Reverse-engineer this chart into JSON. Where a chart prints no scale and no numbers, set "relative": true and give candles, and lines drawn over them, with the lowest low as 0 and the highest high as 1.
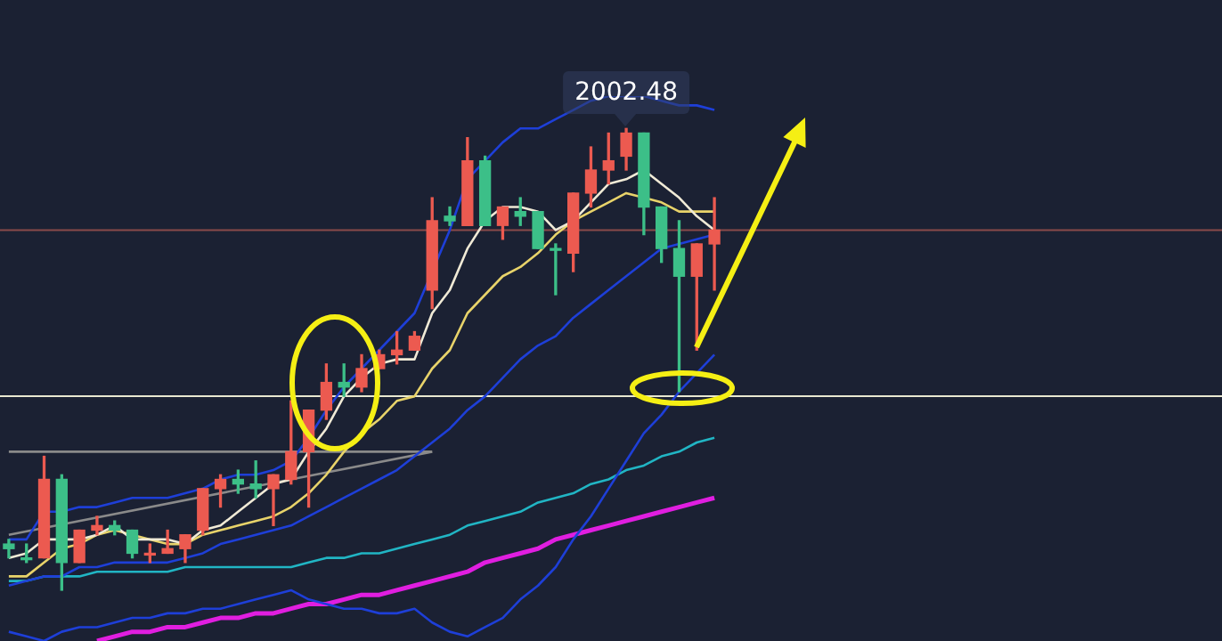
{
  "chart_data": {
    "type": "candlestick",
    "relative": true,
    "tick_labels": false,
    "categories": [
      null,
      null,
      null,
      null,
      null,
      null,
      null,
      null,
      null,
      null,
      null,
      null,
      null,
      null,
      null,
      null,
      null,
      null,
      null,
      null,
      null,
      null,
      null,
      null,
      null,
      null,
      null,
      null,
      null,
      null,
      null,
      null,
      null,
      null,
      null,
      null,
      null,
      null,
      null,
      null,
      null
    ],
    "ohlc": [
      [
        0.1,
        0.11,
        0.07,
        0.09
      ],
      [
        0.07,
        0.1,
        0.06,
        0.07
      ],
      [
        0.07,
        0.29,
        0.07,
        0.24
      ],
      [
        0.24,
        0.25,
        0,
        0.06
      ],
      [
        0.06,
        0.13,
        0.06,
        0.13
      ],
      [
        0.13,
        0.16,
        0.12,
        0.14
      ],
      [
        0.14,
        0.15,
        0.12,
        0.13
      ],
      [
        0.13,
        0.13,
        0.07,
        0.08
      ],
      [
        0.08,
        0.1,
        0.06,
        0.08
      ],
      [
        0.08,
        0.13,
        0.08,
        0.09
      ],
      [
        0.09,
        0.12,
        0.06,
        0.12
      ],
      [
        0.13,
        0.22,
        0.12,
        0.22
      ],
      [
        0.22,
        0.25,
        0.18,
        0.24
      ],
      [
        0.24,
        0.26,
        0.21,
        0.23
      ],
      [
        0.23,
        0.28,
        0.2,
        0.22
      ],
      [
        0.22,
        0.25,
        0.14,
        0.25
      ],
      [
        0.24,
        0.41,
        0.23,
        0.3
      ],
      [
        0.3,
        0.39,
        0.18,
        0.39
      ],
      [
        0.39,
        0.49,
        0.37,
        0.45
      ],
      [
        0.45,
        0.49,
        0.42,
        0.44
      ],
      [
        0.44,
        0.51,
        0.43,
        0.48
      ],
      [
        0.48,
        0.52,
        0.48,
        0.51
      ],
      [
        0.51,
        0.56,
        0.49,
        0.52
      ],
      [
        0.52,
        0.56,
        0.52,
        0.55
      ],
      [
        0.65,
        0.85,
        0.61,
        0.8
      ],
      [
        0.81,
        0.83,
        0.79,
        0.8
      ],
      [
        0.79,
        0.98,
        0.79,
        0.93
      ],
      [
        0.93,
        0.94,
        0.79,
        0.79
      ],
      [
        0.79,
        0.83,
        0.76,
        0.83
      ],
      [
        0.82,
        0.85,
        0.79,
        0.81
      ],
      [
        0.82,
        0.82,
        0.74,
        0.74
      ],
      [
        0.74,
        0.75,
        0.64,
        0.74
      ],
      [
        0.73,
        0.86,
        0.69,
        0.86
      ],
      [
        0.86,
        0.96,
        0.83,
        0.91
      ],
      [
        0.91,
        0.99,
        0.88,
        0.93
      ],
      [
        0.94,
        1,
        0.91,
        0.99
      ],
      [
        0.99,
        0.99,
        0.77,
        0.83
      ],
      [
        0.83,
        0.83,
        0.71,
        0.74
      ],
      [
        0.74,
        0.8,
        0.43,
        0.68
      ],
      [
        0.68,
        0.75,
        0.52,
        0.75
      ],
      [
        0.75,
        0.85,
        0.65,
        0.78
      ]
    ],
    "colors": [
      "#3cbf88",
      "#3cbf88",
      "#ec5a50",
      "#3cbf88",
      "#ec5a50",
      "#ec5a50",
      "#3cbf88",
      "#3cbf88",
      "#ec5a50",
      "#ec5a50",
      "#ec5a50",
      "#ec5a50",
      "#ec5a50",
      "#3cbf88",
      "#3cbf88",
      "#ec5a50",
      "#ec5a50",
      "#ec5a50",
      "#ec5a50",
      "#3cbf88",
      "#ec5a50",
      "#ec5a50",
      "#ec5a50",
      "#ec5a50",
      "#ec5a50",
      "#3cbf88",
      "#ec5a50",
      "#3cbf88",
      "#ec5a50",
      "#3cbf88",
      "#3cbf88",
      "#3cbf88",
      "#ec5a50",
      "#ec5a50",
      "#ec5a50",
      "#ec5a50",
      "#3cbf88",
      "#3cbf88",
      "#3cbf88",
      "#ec5a50",
      "#ec5a50"
    ],
    "series": [
      {
        "type": "line",
        "color": "#f0ead6",
        "values": [
          0.07,
          0.08,
          0.11,
          0.11,
          0.11,
          0.12,
          0.14,
          0.11,
          0.11,
          0.11,
          0.1,
          0.13,
          0.14,
          0.17,
          0.2,
          0.23,
          0.24,
          0.3,
          0.35,
          0.42,
          0.46,
          0.49,
          0.5,
          0.5,
          0.6,
          0.65,
          0.74,
          0.8,
          0.83,
          0.83,
          0.82,
          0.78,
          0.8,
          0.84,
          0.88,
          0.89,
          0.91,
          0.88,
          0.85,
          0.81,
          0.78
        ]
      },
      {
        "type": "line",
        "color": "#e8d36a",
        "values": [
          0.03,
          0.03,
          0.06,
          0.09,
          0.1,
          0.12,
          0.13,
          0.12,
          0.11,
          0.1,
          0.1,
          0.12,
          0.13,
          0.14,
          0.15,
          0.16,
          0.18,
          0.21,
          0.25,
          0.3,
          0.34,
          0.37,
          0.41,
          0.42,
          0.48,
          0.52,
          0.6,
          0.64,
          0.68,
          0.7,
          0.73,
          0.77,
          0.8,
          0.82,
          0.84,
          0.86,
          0.85,
          0.84,
          0.82,
          0.82,
          0.82
        ]
      },
      {
        "type": "line",
        "color": "#1e3fd8",
        "values": [
          0.11,
          0.11,
          0.17,
          0.17,
          0.18,
          0.18,
          0.19,
          0.2,
          0.2,
          0.2,
          0.21,
          0.22,
          0.24,
          0.25,
          0.25,
          0.26,
          0.28,
          0.33,
          0.39,
          0.44,
          0.48,
          0.52,
          0.56,
          0.6,
          null,
          0.78,
          0.89,
          0.93,
          0.97,
          1.0,
          1.0,
          1.02,
          1.04,
          1.06,
          1.07,
          1.07,
          1.07,
          1.06,
          1.05,
          1.05,
          1.04
        ]
      },
      {
        "type": "line",
        "color": "#1e3fd8",
        "values": [
          0.01,
          0.02,
          0.03,
          0.03,
          0.05,
          0.05,
          0.06,
          0.06,
          0.06,
          0.06,
          0.07,
          0.08,
          0.1,
          0.11,
          0.12,
          0.13,
          0.14,
          0.16,
          0.18,
          0.2,
          0.22,
          0.24,
          0.26,
          0.29,
          0.32,
          0.35,
          0.39,
          0.42,
          0.46,
          0.5,
          0.53,
          0.55,
          0.59,
          0.62,
          0.65,
          0.68,
          0.71,
          0.74,
          0.75,
          0.76,
          0.77
        ]
      },
      {
        "type": "line",
        "color": "#1e3fd8",
        "values": [
          -0.09,
          -0.1,
          -0.11,
          -0.09,
          -0.08,
          -0.08,
          -0.07,
          -0.06,
          -0.06,
          -0.05,
          -0.05,
          -0.04,
          -0.04,
          -0.03,
          -0.02,
          -0.01,
          0.0,
          -0.02,
          -0.03,
          -0.04,
          -0.04,
          -0.05,
          -0.05,
          -0.04,
          -0.07,
          -0.09,
          -0.1,
          -0.08,
          -0.06,
          -0.02,
          0.01,
          0.05,
          0.11,
          0.16,
          0.22,
          0.28,
          0.34,
          0.38,
          0.43,
          0.47,
          0.51
        ]
      },
      {
        "type": "line",
        "color": "#21b5c4",
        "values": [
          0.02,
          0.02,
          0.03,
          0.03,
          0.03,
          0.04,
          0.04,
          0.04,
          0.04,
          0.04,
          0.05,
          0.05,
          0.05,
          0.05,
          0.05,
          0.05,
          0.05,
          0.06,
          0.07,
          0.07,
          0.08,
          0.08,
          0.09,
          0.1,
          0.11,
          0.12,
          0.14,
          0.15,
          0.16,
          0.17,
          0.19,
          0.2,
          0.21,
          0.23,
          0.24,
          0.26,
          0.27,
          0.29,
          0.3,
          0.32,
          0.33
        ]
      },
      {
        "type": "line",
        "color": "#e01ee0",
        "values": [
          null,
          null,
          null,
          null,
          null,
          -0.11,
          -0.1,
          -0.09,
          -0.09,
          -0.08,
          -0.08,
          -0.07,
          -0.06,
          -0.06,
          -0.05,
          -0.05,
          -0.04,
          -0.03,
          -0.03,
          -0.02,
          -0.01,
          -0.01,
          0.0,
          0.01,
          0.02,
          0.03,
          0.04,
          0.06,
          0.07,
          0.08,
          0.09,
          0.11,
          0.12,
          0.13,
          0.14,
          0.15,
          0.16,
          0.17,
          0.18,
          0.19,
          0.2
        ]
      },
      {
        "type": "line",
        "color": "#8a8a8a",
        "values": [
          0.12,
          null,
          null,
          null,
          null,
          null,
          null,
          null,
          null,
          null,
          null,
          null,
          null,
          null,
          null,
          null,
          null,
          null,
          null,
          null,
          null,
          null,
          null,
          null,
          0.3,
          null,
          null,
          null,
          null,
          null,
          null,
          null,
          null,
          null,
          null,
          null,
          null,
          null,
          null,
          null,
          null
        ]
      },
      {
        "type": "line",
        "color": "#8a8a8a",
        "values": [
          0.3,
          null,
          null,
          null,
          null,
          null,
          null,
          null,
          null,
          null,
          null,
          null,
          null,
          null,
          null,
          null,
          null,
          null,
          null,
          null,
          null,
          null,
          null,
          null,
          0.3,
          null,
          null,
          null,
          null,
          null,
          null,
          null,
          null,
          null,
          null,
          null,
          null,
          null,
          null,
          null,
          null
        ]
      }
    ],
    "ref_lines": [
      {
        "axis": "y",
        "value": 0.78,
        "color": "#8a4a4a"
      },
      {
        "axis": "y",
        "value": 0.42,
        "color": "#e8e8d0"
      }
    ],
    "annotations": [
      {
        "text": "2002.48",
        "y": 1
      }
    ]
  }
}
